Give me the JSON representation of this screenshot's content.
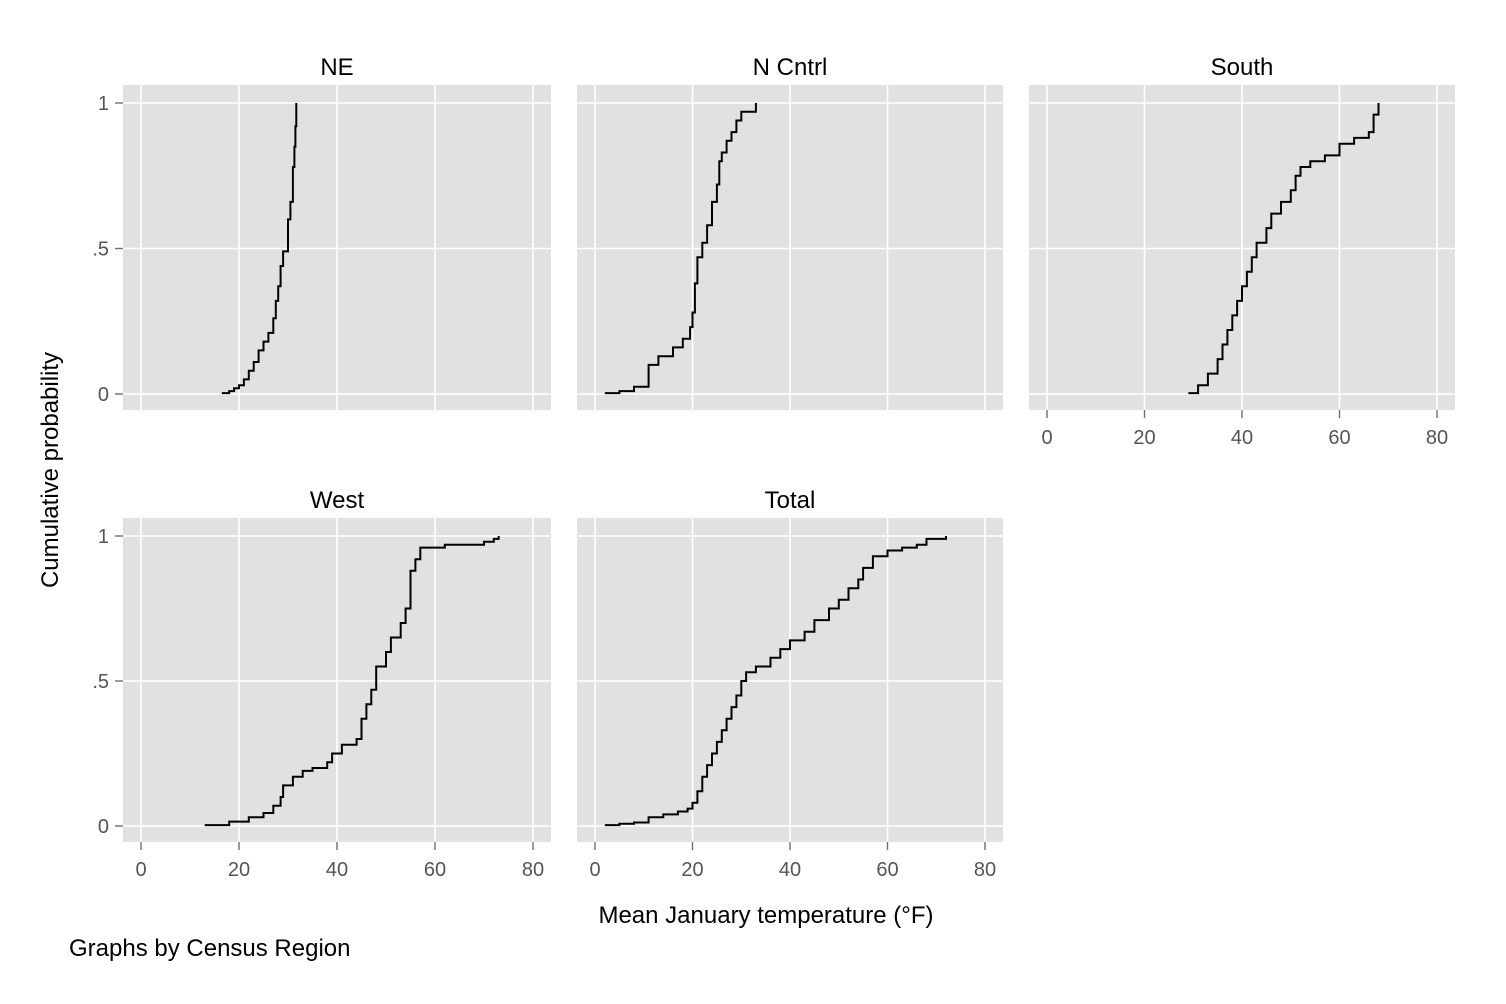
{
  "chart_data": {
    "type": "line",
    "subtype": "cumulative-distribution-small-multiples",
    "xlabel": "Mean January temperature (°F)",
    "ylabel": "Cumulative probability",
    "note": "Graphs by Census Region",
    "xlim": [
      0,
      80
    ],
    "ylim": [
      0,
      1
    ],
    "x_ticks": [
      0,
      20,
      40,
      60,
      80
    ],
    "y_ticks": [
      {
        "value": 0,
        "label": "0"
      },
      {
        "value": 0.5,
        "label": ".5"
      },
      {
        "value": 1,
        "label": "1"
      }
    ],
    "grid": true,
    "panels": [
      {
        "title": "NE",
        "points": [
          [
            16.5,
            0.003
          ],
          [
            18,
            0.01
          ],
          [
            19,
            0.02
          ],
          [
            20,
            0.03
          ],
          [
            21,
            0.05
          ],
          [
            22,
            0.08
          ],
          [
            23,
            0.11
          ],
          [
            24,
            0.15
          ],
          [
            25,
            0.18
          ],
          [
            26,
            0.21
          ],
          [
            27,
            0.26
          ],
          [
            27.5,
            0.32
          ],
          [
            28,
            0.37
          ],
          [
            28.5,
            0.44
          ],
          [
            29,
            0.49
          ],
          [
            30,
            0.54
          ],
          [
            30,
            0.6
          ],
          [
            30.5,
            0.66
          ],
          [
            31,
            0.72
          ],
          [
            31,
            0.78
          ],
          [
            31.3,
            0.85
          ],
          [
            31.5,
            0.92
          ],
          [
            31.7,
            1.0
          ]
        ]
      },
      {
        "title": "N Cntrl",
        "points": [
          [
            2,
            0.003
          ],
          [
            5,
            0.01
          ],
          [
            8,
            0.025
          ],
          [
            11,
            0.04
          ],
          [
            11,
            0.1
          ],
          [
            13,
            0.13
          ],
          [
            16,
            0.16
          ],
          [
            18,
            0.19
          ],
          [
            19.5,
            0.23
          ],
          [
            20,
            0.28
          ],
          [
            20.5,
            0.38
          ],
          [
            21,
            0.47
          ],
          [
            22,
            0.52
          ],
          [
            23,
            0.58
          ],
          [
            24,
            0.66
          ],
          [
            25,
            0.72
          ],
          [
            25.5,
            0.8
          ],
          [
            26,
            0.83
          ],
          [
            27,
            0.87
          ],
          [
            28,
            0.9
          ],
          [
            29,
            0.94
          ],
          [
            30,
            0.97
          ],
          [
            33,
            1.0
          ]
        ]
      },
      {
        "title": "South",
        "points": [
          [
            29,
            0.003
          ],
          [
            31,
            0.03
          ],
          [
            33,
            0.07
          ],
          [
            35,
            0.12
          ],
          [
            36,
            0.17
          ],
          [
            37,
            0.22
          ],
          [
            38,
            0.27
          ],
          [
            39,
            0.32
          ],
          [
            40,
            0.37
          ],
          [
            41,
            0.42
          ],
          [
            42,
            0.47
          ],
          [
            43,
            0.52
          ],
          [
            45,
            0.57
          ],
          [
            46,
            0.62
          ],
          [
            48,
            0.66
          ],
          [
            50,
            0.7
          ],
          [
            51,
            0.75
          ],
          [
            52,
            0.78
          ],
          [
            54,
            0.8
          ],
          [
            57,
            0.82
          ],
          [
            60,
            0.86
          ],
          [
            63,
            0.88
          ],
          [
            66,
            0.9
          ],
          [
            67,
            0.96
          ],
          [
            68,
            1.0
          ]
        ]
      },
      {
        "title": "West",
        "points": [
          [
            13,
            0.003
          ],
          [
            18,
            0.015
          ],
          [
            22,
            0.03
          ],
          [
            25,
            0.045
          ],
          [
            27,
            0.07
          ],
          [
            28.5,
            0.1
          ],
          [
            29,
            0.14
          ],
          [
            31,
            0.17
          ],
          [
            33,
            0.19
          ],
          [
            35,
            0.2
          ],
          [
            38,
            0.22
          ],
          [
            39,
            0.25
          ],
          [
            41,
            0.28
          ],
          [
            44,
            0.3
          ],
          [
            45,
            0.37
          ],
          [
            46,
            0.42
          ],
          [
            47,
            0.47
          ],
          [
            48,
            0.55
          ],
          [
            50,
            0.6
          ],
          [
            51,
            0.65
          ],
          [
            53,
            0.7
          ],
          [
            54,
            0.75
          ],
          [
            55,
            0.82
          ],
          [
            55,
            0.88
          ],
          [
            56,
            0.92
          ],
          [
            57,
            0.96
          ],
          [
            62,
            0.97
          ],
          [
            70,
            0.98
          ],
          [
            72,
            0.99
          ],
          [
            73,
            1.0
          ]
        ]
      },
      {
        "title": "Total",
        "points": [
          [
            2,
            0.003
          ],
          [
            5,
            0.008
          ],
          [
            8,
            0.012
          ],
          [
            11,
            0.018
          ],
          [
            11,
            0.03
          ],
          [
            14,
            0.04
          ],
          [
            17,
            0.05
          ],
          [
            19,
            0.06
          ],
          [
            20,
            0.08
          ],
          [
            21,
            0.12
          ],
          [
            22,
            0.17
          ],
          [
            23,
            0.21
          ],
          [
            24,
            0.25
          ],
          [
            25,
            0.29
          ],
          [
            26,
            0.33
          ],
          [
            27,
            0.37
          ],
          [
            28,
            0.41
          ],
          [
            29,
            0.45
          ],
          [
            30,
            0.5
          ],
          [
            31,
            0.53
          ],
          [
            33,
            0.55
          ],
          [
            36,
            0.58
          ],
          [
            38,
            0.61
          ],
          [
            40,
            0.64
          ],
          [
            43,
            0.67
          ],
          [
            45,
            0.71
          ],
          [
            48,
            0.75
          ],
          [
            50,
            0.78
          ],
          [
            52,
            0.82
          ],
          [
            54,
            0.85
          ],
          [
            55,
            0.89
          ],
          [
            57,
            0.93
          ],
          [
            60,
            0.95
          ],
          [
            63,
            0.96
          ],
          [
            66,
            0.97
          ],
          [
            68,
            0.99
          ],
          [
            72,
            1.0
          ]
        ]
      }
    ]
  }
}
